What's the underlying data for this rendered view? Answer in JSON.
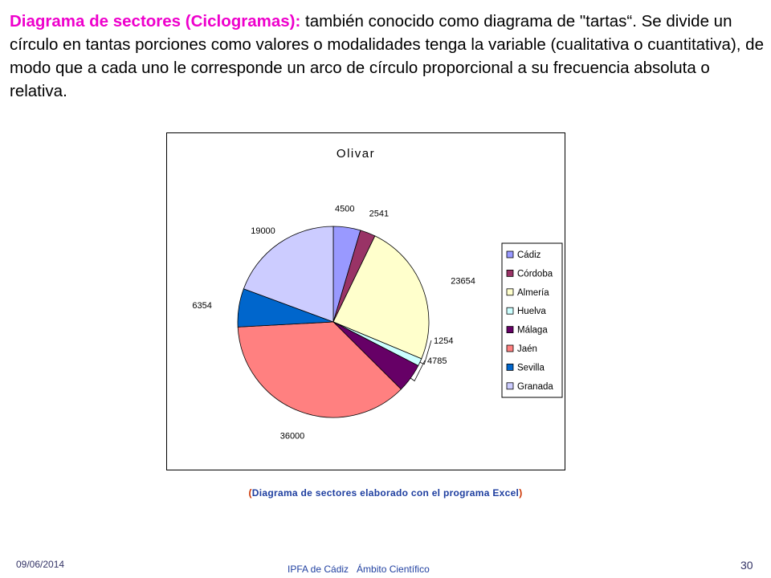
{
  "slide": {
    "heading_lead": "Diagrama de sectores (Ciclogramas):",
    "heading_rest": " también conocido como diagrama de \"tartas“. Se divide un círculo en tantas porciones como valores o modalidades tenga la variable (cualitativa o cuantitativa), de modo que a cada uno le corresponde un arco de círculo proporcional a su frecuencia absoluta o relativa.",
    "caption_open": "(",
    "caption": "Diagrama de sectores elaborado con el programa Excel",
    "caption_close": ")",
    "footer_date": "09/06/2014",
    "footer_institution": "IPFA de Cádiz",
    "footer_department": "Ámbito Científico",
    "page_number": "30"
  },
  "chart_data": {
    "type": "pie",
    "title": "Olivar",
    "start_angle_deg": 0,
    "direction": "clockwise",
    "legend_position": "right",
    "categories": [
      "Cádiz",
      "Córdoba",
      "Almería",
      "Huelva",
      "Málaga",
      "Jaén",
      "Sevilla",
      "Granada"
    ],
    "values": [
      4500,
      2541,
      23654,
      1254,
      4785,
      36000,
      6354,
      19000
    ],
    "data_labels": [
      "4500",
      "2541",
      "23654",
      "1254",
      "4785",
      "36000",
      "6354",
      "19000"
    ],
    "colors": [
      "#9999ff",
      "#993366",
      "#ffffcc",
      "#ccffff",
      "#660066",
      "#ff8080",
      "#0066cc",
      "#ccccff"
    ]
  }
}
